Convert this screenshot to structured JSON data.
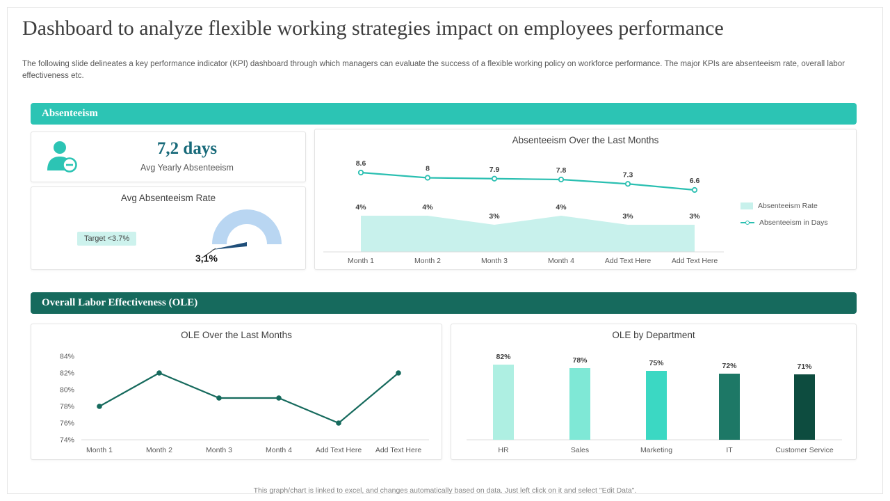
{
  "page": {
    "title": "Dashboard to analyze flexible working strategies impact on employees performance",
    "description": "The following slide delineates a key performance indicator (KPI) dashboard through which managers can evaluate the success of a flexible working policy on workforce performance. The major KPIs are absenteeism rate, overall labor effectiveness etc.",
    "footer": "This graph/chart is linked to excel, and changes automatically based on data. Just left click on it and select \"Edit Data\"."
  },
  "theme": {
    "teal": "#2cc4b4",
    "dark_green": "#166a5d",
    "area_fill": "#c8f1ec",
    "line_teal": "#2abfb1",
    "kpi_text": "#186a7a",
    "gauge_fill": "#b9d6f2",
    "gauge_needle": "#1f4e79",
    "target_chip_bg": "#cdf2ed"
  },
  "sections": {
    "absenteeism": {
      "title": "Absenteeism",
      "kpi": {
        "value": "7,2 days",
        "label": "Avg Yearly Absenteeism"
      }
    },
    "ole": {
      "title": "Overall Labor Effectiveness (OLE)"
    }
  },
  "chart_data": [
    {
      "id": "absenteeism-over-last-months",
      "type": "line",
      "title": "Absenteeism Over the Last Months",
      "categories": [
        "Month 1",
        "Month 2",
        "Month 3",
        "Month 4",
        "Add Text Here",
        "Add Text Here"
      ],
      "series": [
        {
          "name": "Absenteeism Rate",
          "render": "area",
          "unit": "%",
          "values": [
            4,
            4,
            3,
            4,
            3,
            3
          ],
          "labels": [
            "4%",
            "4%",
            "3%",
            "4%",
            "3%",
            "3%"
          ],
          "color": "#c8f1ec"
        },
        {
          "name": "Absenteeism in Days",
          "render": "line",
          "values": [
            8.6,
            8,
            7.9,
            7.8,
            7.3,
            6.6
          ],
          "labels": [
            "8.6",
            "8",
            "7.9",
            "7.8",
            "7.3",
            "6.6"
          ],
          "color": "#2abfb1"
        }
      ],
      "legend_position": "right",
      "grid": false
    },
    {
      "id": "ole-over-last-months",
      "type": "line",
      "title": "OLE Over the Last Months",
      "categories": [
        "Month 1",
        "Month 2",
        "Month 3",
        "Month 4",
        "Add Text Here",
        "Add Text Here"
      ],
      "values": [
        78,
        82,
        79,
        79,
        76,
        82
      ],
      "ylim": [
        74,
        84
      ],
      "yticks": [
        "84%",
        "82%",
        "80%",
        "78%",
        "76%",
        "74%"
      ],
      "color": "#166a5d",
      "grid": false
    },
    {
      "id": "ole-by-department",
      "type": "bar",
      "title": "OLE by Department",
      "categories": [
        "HR",
        "Sales",
        "Marketing",
        "IT",
        "Customer Service"
      ],
      "values": [
        82,
        78,
        75,
        72,
        71
      ],
      "labels": [
        "82%",
        "78%",
        "75%",
        "72%",
        "71%"
      ],
      "colors": [
        "#aeefe2",
        "#7fe8d6",
        "#3bd8c3",
        "#1d7866",
        "#0d4c3f"
      ],
      "ylim": [
        0,
        100
      ]
    },
    {
      "id": "avg-absenteeism-rate-gauge",
      "type": "gauge",
      "title": "Avg Absenteeism Rate",
      "value": 3.1,
      "value_label": "3,1%",
      "target_label": "Target <3.7%"
    }
  ]
}
